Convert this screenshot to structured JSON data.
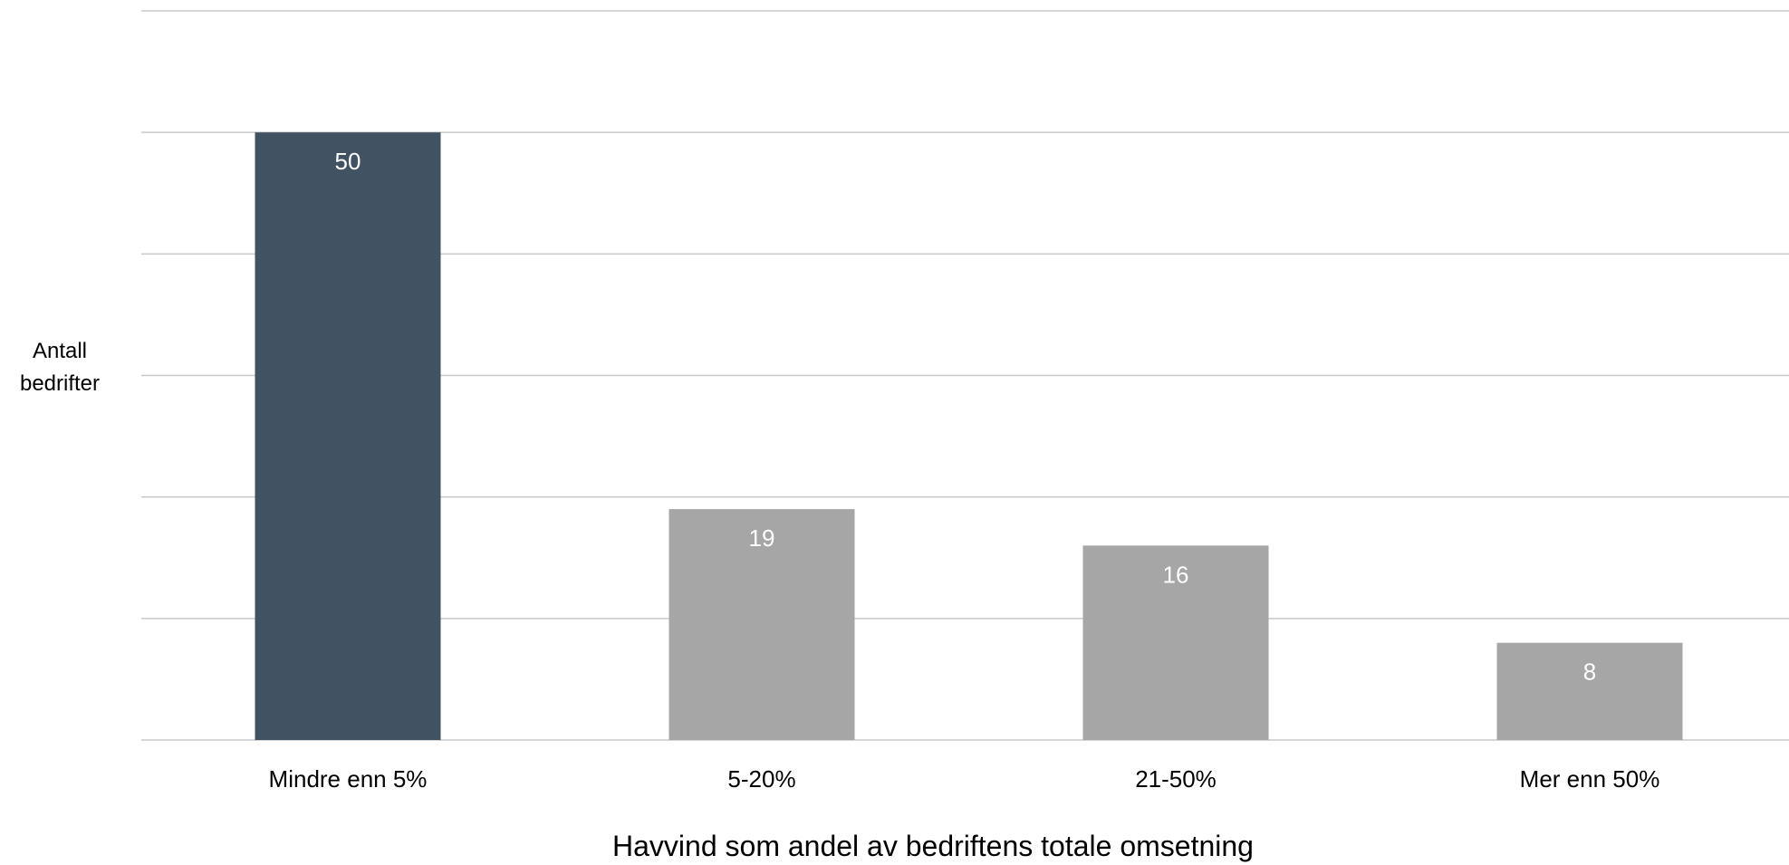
{
  "chart_data": {
    "type": "bar",
    "categories": [
      "Mindre enn 5%",
      "5-20%",
      "21-50%",
      "Mer enn 50%"
    ],
    "values": [
      50,
      19,
      16,
      8
    ],
    "xlabel": "Havvind som andel av bedriftens totale omsetning",
    "ylabel_lines": [
      "Antall",
      "bedrifter"
    ],
    "ylim": [
      0,
      60
    ],
    "y_grid_step": 10,
    "grid": true,
    "show_y_tick_labels": false,
    "colors": {
      "highlight": "#415263",
      "default": "#a6a6a6",
      "data_label": "#ffffff",
      "grid": "#c8c8c8"
    },
    "highlight_index": 0
  }
}
